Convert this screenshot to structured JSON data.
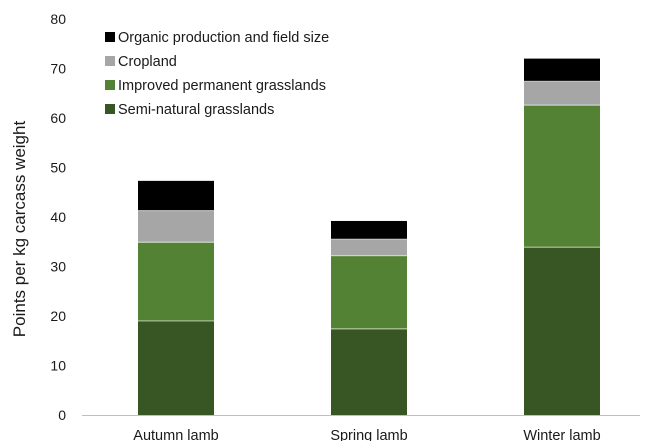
{
  "chart_data": {
    "type": "bar",
    "stacked": true,
    "title": "",
    "xlabel": "",
    "ylabel": "Points per kg carcass weight",
    "ylim": [
      0,
      80
    ],
    "yticks": [
      0,
      10,
      20,
      30,
      40,
      50,
      60,
      70,
      80
    ],
    "grid": false,
    "legend_position": "top-left",
    "categories": [
      "Autumn lamb",
      "Spring lamb",
      "Winter lamb"
    ],
    "series": [
      {
        "name": "Semi-natural grasslands",
        "color": "#375623",
        "values": [
          19.0,
          17.4,
          33.9
        ]
      },
      {
        "name": "Improved permanent grasslands",
        "color": "#548235",
        "values": [
          15.9,
          14.8,
          28.7
        ]
      },
      {
        "name": "Cropland",
        "color": "#a6a6a6",
        "values": [
          6.4,
          3.3,
          4.8
        ]
      },
      {
        "name": "Organic production and field size",
        "color": "#000000",
        "values": [
          6.0,
          3.7,
          4.6
        ]
      }
    ]
  }
}
